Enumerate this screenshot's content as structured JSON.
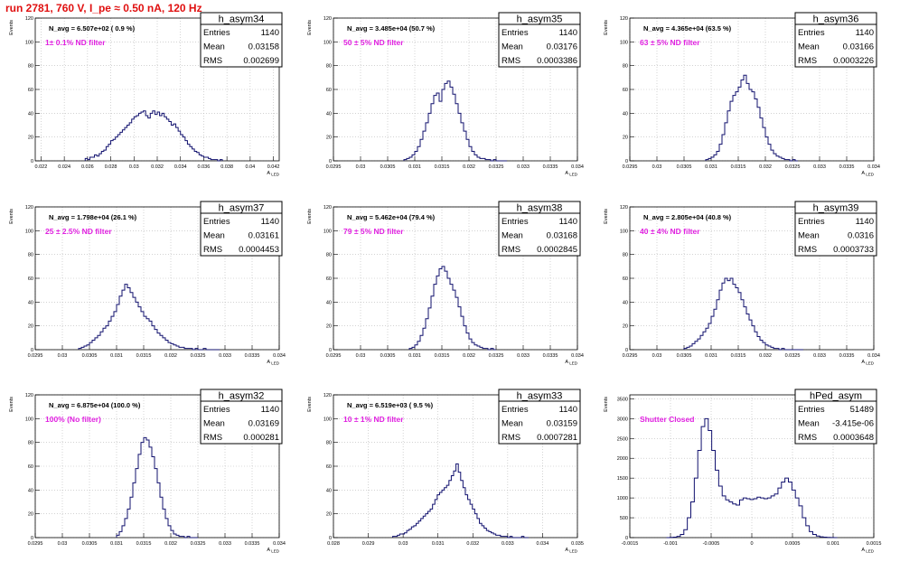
{
  "page": {
    "title": "run 2781,   760 V, I_pe ≈ 0.50 nA, 120 Hz",
    "title_color": "#e01010"
  },
  "colors": {
    "histogram_line": "#10106e",
    "annotation_magenta": "#e020e0",
    "grid": "#b8b8b8",
    "axis": "#000000"
  },
  "chart_data": [
    {
      "type": "histogram",
      "name": "h_asym34",
      "stats": {
        "entries_label": "Entries",
        "entries": "1140",
        "mean_label": "Mean",
        "mean": "0.03158",
        "rms_label": "RMS",
        "rms": "0.002699"
      },
      "navg_text": "N_avg = 6.507e+02 ( 0.9 %)",
      "filter_text": "1± 0.1% ND filter",
      "ylabel": "Events",
      "xlabel": "A_LED",
      "xlim": [
        0.0215,
        0.0425
      ],
      "ylim": [
        0,
        120
      ],
      "xticks": [
        0.022,
        0.024,
        0.026,
        0.028,
        0.03,
        0.032,
        0.034,
        0.036,
        0.038,
        0.04,
        0.042
      ],
      "xtick_labels": [
        "0.022",
        "0.024",
        "0.026",
        "0.028",
        "0.03",
        "0.032",
        "0.034",
        "0.036",
        "0.038",
        "0.04",
        "0.042"
      ],
      "yticks": [
        0,
        20,
        40,
        60,
        80,
        100,
        120
      ],
      "ytick_labels": [
        "0",
        "20",
        "40",
        "60",
        "80",
        "100",
        "120"
      ],
      "bins": {
        "x0": 0.0258,
        "x1": 0.0376,
        "counts": [
          2,
          1,
          3,
          3,
          5,
          4,
          6,
          8,
          9,
          12,
          14,
          17,
          18,
          20,
          22,
          24,
          26,
          28,
          30,
          32,
          35,
          37,
          38,
          40,
          41,
          42,
          38,
          36,
          40,
          42,
          39,
          41,
          38,
          40,
          37,
          35,
          33,
          30,
          31,
          28,
          25,
          22,
          20,
          17,
          14,
          12,
          10,
          8,
          7,
          5,
          4,
          3,
          3,
          2,
          1,
          1,
          1,
          0,
          1
        ]
      }
    },
    {
      "type": "histogram",
      "name": "h_asym35",
      "stats": {
        "entries_label": "Entries",
        "entries": "1140",
        "mean_label": "Mean",
        "mean": "0.03176",
        "rms_label": "RMS",
        "rms": "0.0003386"
      },
      "navg_text": "N_avg = 3.485e+04 (50.7 %)",
      "filter_text": "50 ± 5% ND filter",
      "ylabel": "Events",
      "xlabel": "A_LED",
      "xlim": [
        0.0295,
        0.034
      ],
      "ylim": [
        0,
        120
      ],
      "xticks": [
        0.0295,
        0.03,
        0.0305,
        0.031,
        0.0315,
        0.032,
        0.0325,
        0.033,
        0.0335,
        0.034
      ],
      "xtick_labels": [
        "0.0295",
        "0.03",
        "0.0305",
        "0.031",
        "0.0315",
        "0.032",
        "0.0325",
        "0.033",
        "0.0335",
        "0.034"
      ],
      "yticks": [
        0,
        20,
        40,
        60,
        80,
        100,
        120
      ],
      "ytick_labels": [
        "0",
        "20",
        "40",
        "60",
        "80",
        "100",
        "120"
      ],
      "bins": {
        "x0": 0.0308,
        "x1": 0.0327,
        "counts": [
          1,
          2,
          3,
          5,
          8,
          12,
          18,
          25,
          32,
          40,
          48,
          55,
          57,
          50,
          60,
          65,
          67,
          62,
          56,
          48,
          40,
          32,
          25,
          18,
          12,
          8,
          5,
          3,
          2,
          2,
          1,
          1,
          0,
          1,
          0,
          0,
          0,
          0
        ]
      }
    },
    {
      "type": "histogram",
      "name": "h_asym36",
      "stats": {
        "entries_label": "Entries",
        "entries": "1140",
        "mean_label": "Mean",
        "mean": "0.03166",
        "rms_label": "RMS",
        "rms": "0.0003226"
      },
      "navg_text": "N_avg = 4.365e+04 (63.5 %)",
      "filter_text": "63 ± 5% ND filter",
      "ylabel": "Events",
      "xlabel": "A_LED",
      "xlim": [
        0.0295,
        0.034
      ],
      "ylim": [
        0,
        120
      ],
      "xticks": [
        0.0295,
        0.03,
        0.0305,
        0.031,
        0.0315,
        0.032,
        0.0325,
        0.033,
        0.0335,
        0.034
      ],
      "xtick_labels": [
        "0.0295",
        "0.03",
        "0.0305",
        "0.031",
        "0.0315",
        "0.032",
        "0.0325",
        "0.033",
        "0.0335",
        "0.034"
      ],
      "yticks": [
        0,
        20,
        40,
        60,
        80,
        100,
        120
      ],
      "ytick_labels": [
        "0",
        "20",
        "40",
        "60",
        "80",
        "100",
        "120"
      ],
      "bins": {
        "x0": 0.0309,
        "x1": 0.0326,
        "counts": [
          1,
          2,
          3,
          5,
          8,
          14,
          22,
          32,
          42,
          50,
          55,
          58,
          62,
          68,
          72,
          65,
          60,
          58,
          52,
          45,
          36,
          28,
          20,
          14,
          9,
          6,
          4,
          3,
          2,
          1,
          1,
          0,
          1,
          0
        ]
      }
    },
    {
      "type": "histogram",
      "name": "h_asym37",
      "stats": {
        "entries_label": "Entries",
        "entries": "1140",
        "mean_label": "Mean",
        "mean": "0.03161",
        "rms_label": "RMS",
        "rms": "0.0004453"
      },
      "navg_text": "N_avg = 1.798e+04 (26.1 %)",
      "filter_text": "25 ± 2.5% ND filter",
      "ylabel": "Events",
      "xlabel": "A_LED",
      "xlim": [
        0.0295,
        0.034
      ],
      "ylim": [
        0,
        120
      ],
      "xticks": [
        0.0295,
        0.03,
        0.0305,
        0.031,
        0.0315,
        0.032,
        0.0325,
        0.033,
        0.0335,
        0.034
      ],
      "xtick_labels": [
        "0.0295",
        "0.03",
        "0.0305",
        "0.031",
        "0.0315",
        "0.032",
        "0.0325",
        "0.033",
        "0.0335",
        "0.034"
      ],
      "yticks": [
        0,
        20,
        40,
        60,
        80,
        100,
        120
      ],
      "ytick_labels": [
        "0",
        "20",
        "40",
        "60",
        "80",
        "100",
        "120"
      ],
      "bins": {
        "x0": 0.0303,
        "x1": 0.0329,
        "counts": [
          1,
          2,
          3,
          4,
          6,
          8,
          10,
          12,
          15,
          18,
          20,
          24,
          28,
          32,
          38,
          45,
          50,
          55,
          52,
          48,
          44,
          40,
          36,
          32,
          28,
          26,
          24,
          20,
          17,
          14,
          12,
          10,
          8,
          6,
          5,
          4,
          3,
          2,
          2,
          1,
          1,
          1,
          0,
          1,
          0,
          0,
          1,
          0,
          0,
          0,
          0,
          0
        ]
      }
    },
    {
      "type": "histogram",
      "name": "h_asym38",
      "stats": {
        "entries_label": "Entries",
        "entries": "1140",
        "mean_label": "Mean",
        "mean": "0.03168",
        "rms_label": "RMS",
        "rms": "0.0002845"
      },
      "navg_text": "N_avg = 5.462e+04 (79.4 %)",
      "filter_text": "79 ± 5% ND filter",
      "ylabel": "Events",
      "xlabel": "A_LED",
      "xlim": [
        0.0295,
        0.034
      ],
      "ylim": [
        0,
        120
      ],
      "xticks": [
        0.0295,
        0.03,
        0.0305,
        0.031,
        0.0315,
        0.032,
        0.0325,
        0.033,
        0.0335,
        0.034
      ],
      "xtick_labels": [
        "0.0295",
        "0.03",
        "0.0305",
        "0.031",
        "0.0315",
        "0.032",
        "0.0325",
        "0.033",
        "0.0335",
        "0.034"
      ],
      "yticks": [
        0,
        20,
        40,
        60,
        80,
        100,
        120
      ],
      "ytick_labels": [
        "0",
        "20",
        "40",
        "60",
        "80",
        "100",
        "120"
      ],
      "bins": {
        "x0": 0.0309,
        "x1": 0.0325,
        "counts": [
          1,
          2,
          4,
          7,
          12,
          18,
          26,
          35,
          45,
          55,
          62,
          68,
          70,
          66,
          60,
          55,
          50,
          44,
          36,
          28,
          20,
          14,
          9,
          6,
          4,
          3,
          2,
          1,
          1,
          0,
          1,
          0
        ]
      }
    },
    {
      "type": "histogram",
      "name": "h_asym39",
      "stats": {
        "entries_label": "Entries",
        "entries": "1140",
        "mean_label": "Mean",
        "mean": "0.0316",
        "rms_label": "RMS",
        "rms": "0.0003733"
      },
      "navg_text": "N_avg = 2.805e+04 (40.8 %)",
      "filter_text": "40 ± 4% ND filter",
      "ylabel": "Events",
      "xlabel": "A_LED",
      "xlim": [
        0.0295,
        0.034
      ],
      "ylim": [
        0,
        120
      ],
      "xticks": [
        0.0295,
        0.03,
        0.0305,
        0.031,
        0.0315,
        0.032,
        0.0325,
        0.033,
        0.0335,
        0.034
      ],
      "xtick_labels": [
        "0.0295",
        "0.03",
        "0.0305",
        "0.031",
        "0.0315",
        "0.032",
        "0.0325",
        "0.033",
        "0.0335",
        "0.034"
      ],
      "yticks": [
        0,
        20,
        40,
        60,
        80,
        100,
        120
      ],
      "ytick_labels": [
        "0",
        "20",
        "40",
        "60",
        "80",
        "100",
        "120"
      ],
      "bins": {
        "x0": 0.0305,
        "x1": 0.0327,
        "counts": [
          1,
          2,
          3,
          5,
          7,
          9,
          12,
          15,
          18,
          22,
          28,
          34,
          42,
          50,
          56,
          60,
          58,
          60,
          55,
          52,
          48,
          42,
          36,
          30,
          25,
          20,
          15,
          11,
          8,
          6,
          4,
          3,
          2,
          1,
          1,
          0,
          1,
          0,
          0,
          0,
          0,
          0,
          0,
          0
        ]
      }
    },
    {
      "type": "histogram",
      "name": "h_asym32",
      "stats": {
        "entries_label": "Entries",
        "entries": "1140",
        "mean_label": "Mean",
        "mean": "0.03169",
        "rms_label": "RMS",
        "rms": "0.000281"
      },
      "navg_text": "N_avg = 6.875e+04 (100.0 %)",
      "filter_text": "100% (No filter)",
      "ylabel": "Events",
      "xlabel": "A_LED",
      "xlim": [
        0.0295,
        0.034
      ],
      "ylim": [
        0,
        120
      ],
      "xticks": [
        0.0295,
        0.03,
        0.0305,
        0.031,
        0.0315,
        0.032,
        0.0325,
        0.033,
        0.0335,
        0.034
      ],
      "xtick_labels": [
        "0.0295",
        "0.03",
        "0.0305",
        "0.031",
        "0.0315",
        "0.032",
        "0.0325",
        "0.033",
        "0.0335",
        "0.034"
      ],
      "yticks": [
        0,
        20,
        40,
        60,
        80,
        100,
        120
      ],
      "ytick_labels": [
        "0",
        "20",
        "40",
        "60",
        "80",
        "100",
        "120"
      ],
      "bins": {
        "x0": 0.031,
        "x1": 0.0325,
        "counts": [
          2,
          5,
          10,
          16,
          24,
          34,
          46,
          58,
          70,
          80,
          84,
          82,
          76,
          68,
          58,
          46,
          34,
          24,
          16,
          10,
          6,
          3,
          2,
          1,
          1,
          0,
          1,
          0,
          0,
          0
        ]
      }
    },
    {
      "type": "histogram",
      "name": "h_asym33",
      "stats": {
        "entries_label": "Entries",
        "entries": "1140",
        "mean_label": "Mean",
        "mean": "0.03159",
        "rms_label": "RMS",
        "rms": "0.0007281"
      },
      "navg_text": "N_avg = 6.519e+03 ( 9.5 %)",
      "filter_text": "10 ± 1% ND filter",
      "ylabel": "Events",
      "xlabel": "A_LED",
      "xlim": [
        0.028,
        0.035
      ],
      "ylim": [
        0,
        120
      ],
      "xticks": [
        0.028,
        0.029,
        0.03,
        0.031,
        0.032,
        0.033,
        0.034,
        0.035
      ],
      "xtick_labels": [
        "0.028",
        "0.029",
        "0.03",
        "0.031",
        "0.032",
        "0.033",
        "0.034",
        "0.035"
      ],
      "yticks": [
        0,
        20,
        40,
        60,
        80,
        100,
        120
      ],
      "ytick_labels": [
        "0",
        "20",
        "40",
        "60",
        "80",
        "100",
        "120"
      ],
      "bins": {
        "x0": 0.0297,
        "x1": 0.0336,
        "counts": [
          1,
          1,
          2,
          3,
          3,
          4,
          6,
          7,
          9,
          10,
          12,
          14,
          16,
          18,
          20,
          22,
          24,
          28,
          32,
          36,
          38,
          40,
          42,
          44,
          48,
          52,
          56,
          62,
          55,
          48,
          42,
          36,
          32,
          28,
          24,
          20,
          16,
          12,
          10,
          8,
          6,
          5,
          4,
          3,
          2,
          2,
          1,
          1,
          1,
          0,
          1,
          0,
          0,
          0,
          0,
          1,
          0,
          0
        ]
      }
    },
    {
      "type": "histogram",
      "name": "hPed_asym",
      "stats": {
        "entries_label": "Entries",
        "entries": "51489",
        "mean_label": "Mean",
        "mean": "-3.415e-06",
        "rms_label": "RMS",
        "rms": "0.0003648"
      },
      "navg_text": "",
      "filter_text": "Shutter Closed",
      "ylabel": "Events",
      "xlabel": "A_LED",
      "xlim": [
        -0.0015,
        0.0015
      ],
      "ylim": [
        0,
        3600
      ],
      "xticks": [
        -0.0015,
        -0.001,
        -0.0005,
        0,
        0.0005,
        0.001,
        0.0015
      ],
      "xtick_labels": [
        "-0.0015",
        "-0.001",
        "-0.0005",
        "0",
        "0.0005",
        "0.001",
        "0.0015"
      ],
      "yticks": [
        0,
        500,
        1000,
        1500,
        2000,
        2500,
        3000,
        3500
      ],
      "ytick_labels": [
        "0",
        "500",
        "1000",
        "1500",
        "2000",
        "2500",
        "3000",
        "3500"
      ],
      "bins": {
        "x0": -0.00105,
        "x1": 0.00105,
        "counts": [
          0,
          5,
          10,
          30,
          80,
          200,
          500,
          900,
          1500,
          2200,
          2800,
          3000,
          2700,
          2200,
          1700,
          1300,
          1050,
          950,
          900,
          850,
          820,
          950,
          1000,
          980,
          960,
          980,
          1020,
          1000,
          980,
          1000,
          1050,
          1100,
          1250,
          1400,
          1500,
          1400,
          1200,
          1000,
          800,
          500,
          300,
          150,
          80,
          40,
          20,
          10,
          5,
          3,
          0
        ]
      }
    }
  ]
}
